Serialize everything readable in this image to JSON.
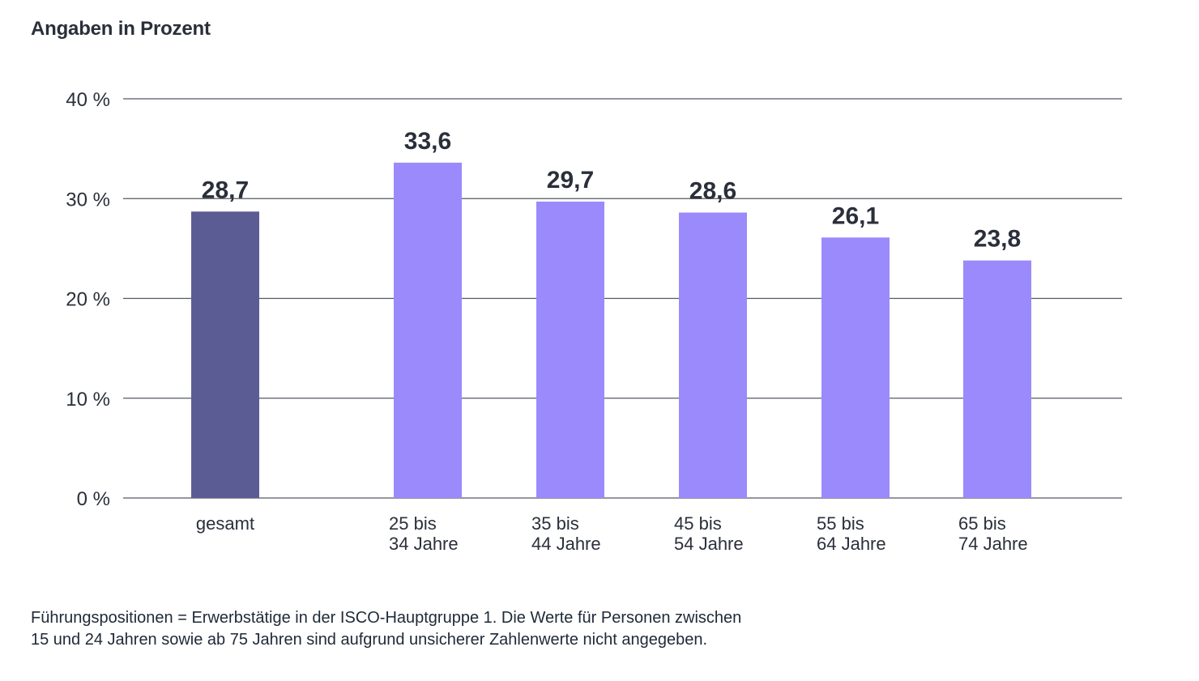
{
  "header": {
    "subtitle": "Angaben in Prozent"
  },
  "chart_data": {
    "type": "bar",
    "categories": [
      [
        "gesamt"
      ],
      [
        "25 bis",
        "34 Jahre"
      ],
      [
        "35 bis",
        "44 Jahre"
      ],
      [
        "45 bis",
        "54 Jahre"
      ],
      [
        "55 bis",
        "64 Jahre"
      ],
      [
        "65 bis",
        "74 Jahre"
      ]
    ],
    "values": [
      28.7,
      33.6,
      29.7,
      28.6,
      26.1,
      23.8
    ],
    "value_labels": [
      "28,7",
      "33,6",
      "29,7",
      "28,6",
      "26,1",
      "23,8"
    ],
    "ylim": [
      0,
      40
    ],
    "yticks": [
      0,
      10,
      20,
      30,
      40
    ],
    "ytick_labels": [
      "0 %",
      "10 %",
      "20 %",
      "30 %",
      "40 %"
    ],
    "grid": true,
    "colors": {
      "total": "#5c5c94",
      "age_groups": "#9b8afb",
      "gridline": "#555a63",
      "text": "#2a2f3a"
    }
  },
  "footnote": {
    "line1": "Führungspositionen = Erwerbstätige in der ISCO-Hauptgruppe 1. Die Werte für Personen zwischen",
    "line2": "15 und 24 Jahren sowie ab 75 Jahren sind aufgrund unsicherer Zahlenwerte nicht angegeben."
  }
}
